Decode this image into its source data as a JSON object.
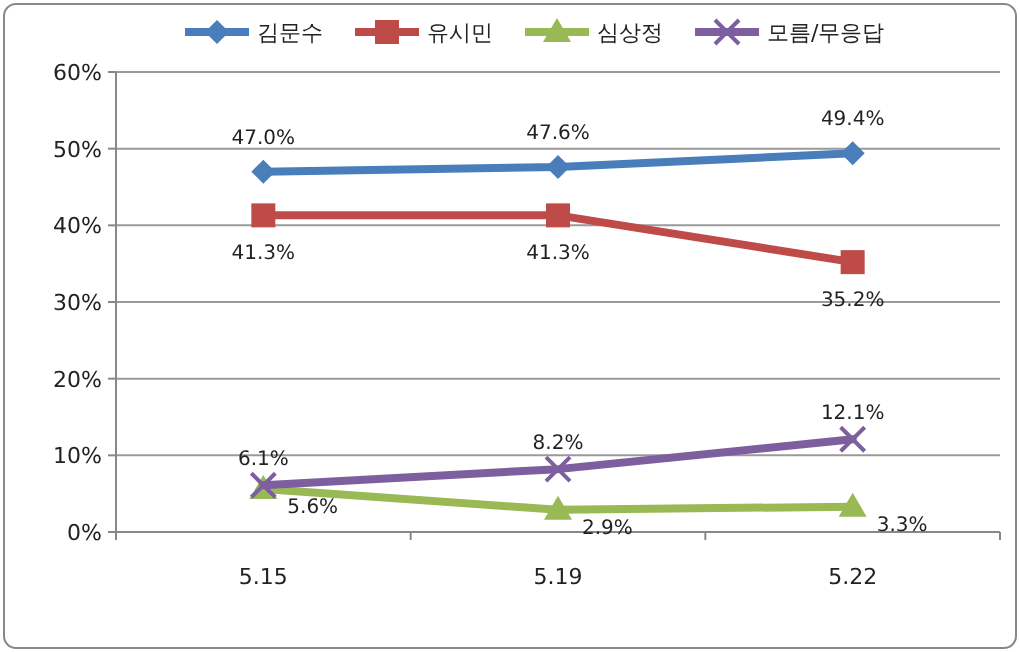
{
  "chart_data": {
    "type": "line",
    "categories": [
      "5.15",
      "5.19",
      "5.22"
    ],
    "series": [
      {
        "name": "김문수",
        "color": "#4a7ebb",
        "marker": "diamond",
        "values": [
          47.0,
          47.6,
          49.4
        ],
        "value_labels": [
          "47.0%",
          "47.6%",
          "49.4%"
        ]
      },
      {
        "name": "유시민",
        "color": "#be4b48",
        "marker": "square",
        "values": [
          41.3,
          41.3,
          35.2
        ],
        "value_labels": [
          "41.3%",
          "41.3%",
          "35.2%"
        ]
      },
      {
        "name": "심상정",
        "color": "#98b954",
        "marker": "triangle",
        "values": [
          5.6,
          2.9,
          3.3
        ],
        "value_labels": [
          "5.6%",
          "2.9%",
          "3.3%"
        ]
      },
      {
        "name": "모름/무응답",
        "color": "#7d5fa0",
        "marker": "cross",
        "values": [
          6.1,
          8.2,
          12.1
        ],
        "value_labels": [
          "6.1%",
          "8.2%",
          "12.1%"
        ]
      }
    ],
    "ylim": [
      0,
      60
    ],
    "yticks": [
      {
        "value": 0,
        "label": "0%"
      },
      {
        "value": 10,
        "label": "10%"
      },
      {
        "value": 20,
        "label": "20%"
      },
      {
        "value": 30,
        "label": "30%"
      },
      {
        "value": 40,
        "label": "40%"
      },
      {
        "value": 50,
        "label": "50%"
      },
      {
        "value": 60,
        "label": "60%"
      }
    ],
    "grid": "y",
    "legend": "top"
  }
}
